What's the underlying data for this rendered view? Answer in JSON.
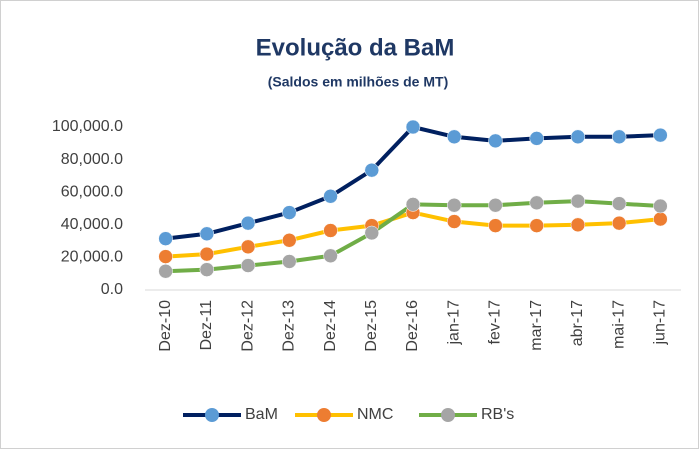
{
  "chart_data": {
    "type": "line",
    "title": "Evolução da BaM",
    "subtitle": "(Saldos em milhões de MT)",
    "categories": [
      "Dez-10",
      "Dez-11",
      "Dez-12",
      "Dez-13",
      "Dez-14",
      "Dez-15",
      "Dez-16",
      "jan-17",
      "fev-17",
      "mar-17",
      "abr-17",
      "mai-17",
      "jun-17"
    ],
    "series": [
      {
        "name": "BaM",
        "color": "#002060",
        "marker_color": "#5b9bd5",
        "values": [
          31500,
          34500,
          41000,
          47500,
          57500,
          73500,
          100000,
          94000,
          91500,
          93000,
          94000,
          94000,
          95000
        ]
      },
      {
        "name": "NMC",
        "color": "#ffc000",
        "marker_color": "#ed7d31",
        "values": [
          20500,
          22000,
          26500,
          30500,
          36500,
          39500,
          47500,
          42000,
          39500,
          39500,
          40000,
          41000,
          43500
        ]
      },
      {
        "name": "RB's",
        "color": "#70ad47",
        "marker_color": "#a5a5a5",
        "values": [
          11500,
          12500,
          15000,
          17500,
          21000,
          35000,
          52500,
          52000,
          52000,
          53500,
          54500,
          53000,
          51500
        ]
      }
    ],
    "ylim": [
      0,
      100000
    ],
    "yticks": [
      {
        "value": 0,
        "label": "0.0"
      },
      {
        "value": 20000,
        "label": "20,000.0"
      },
      {
        "value": 40000,
        "label": "40,000.0"
      },
      {
        "value": 60000,
        "label": "60,000.0"
      },
      {
        "value": 80000,
        "label": "80,000.0"
      },
      {
        "value": 100000,
        "label": "100,000.0"
      }
    ],
    "grid": false,
    "legend": "bottom"
  }
}
